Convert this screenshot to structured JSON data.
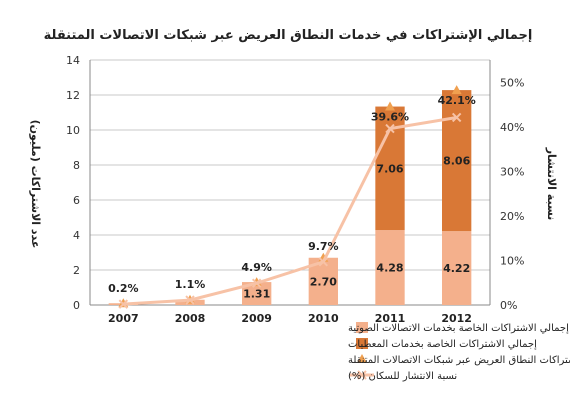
{
  "chart_data": {
    "type": "bar",
    "title": "إجمالي الإشتراكات في خدمات النطاق العريض عبر شبكات الاتصالات المتنقلة",
    "ylabel_left": "عدد الاشتراكات (مليون)",
    "ylabel_right": "نسبة الانتشار",
    "categories": [
      "2007",
      "2008",
      "2009",
      "2010",
      "2011",
      "2012"
    ],
    "ylim_left": [
      0,
      14
    ],
    "yticks_left": [
      "0",
      "2",
      "4",
      "6",
      "8",
      "10",
      "12",
      "14"
    ],
    "ylim_right": [
      0,
      55
    ],
    "yticks_right": [
      "0%",
      "10%",
      "20%",
      "30%",
      "40%",
      "50%"
    ],
    "grid": true,
    "legend_position": "bottom",
    "series": [
      {
        "name": "إجمالي الاشتراكات الخاصة بخدمات الاتصالات الصوتية",
        "type": "bar-stacked",
        "color": "#f4b08c",
        "values": [
          0.1,
          0.3,
          1.31,
          2.7,
          4.28,
          4.22
        ],
        "labels": [
          "",
          "",
          "1.31",
          "2.70",
          "4.28",
          "4.22"
        ]
      },
      {
        "name": "إجمالي الاشتراكات الخاصة بخدمات المعطيات",
        "type": "bar-stacked",
        "color": "#d97836",
        "values": [
          0,
          0,
          0,
          0,
          7.06,
          8.06
        ],
        "labels": [
          "",
          "",
          "",
          "",
          "7.06",
          "8.06"
        ]
      },
      {
        "name": "إجمالي اشتراكات النطاق العريض عبر شبكات الاتصالات المتنقلة",
        "type": "marker",
        "color": "#f0a050",
        "axis": "left",
        "values": [
          0.1,
          0.3,
          1.31,
          2.7,
          11.34,
          12.28
        ]
      },
      {
        "name": "نسبة الانتشار للسكان (%)",
        "type": "line",
        "color": "#f7c2a6",
        "axis": "right",
        "values": [
          0.2,
          1.1,
          4.9,
          9.7,
          39.6,
          42.1
        ],
        "labels": [
          "0.2%",
          "1.1%",
          "4.9%",
          "9.7%",
          "39.6%",
          "42.1%"
        ]
      }
    ]
  }
}
